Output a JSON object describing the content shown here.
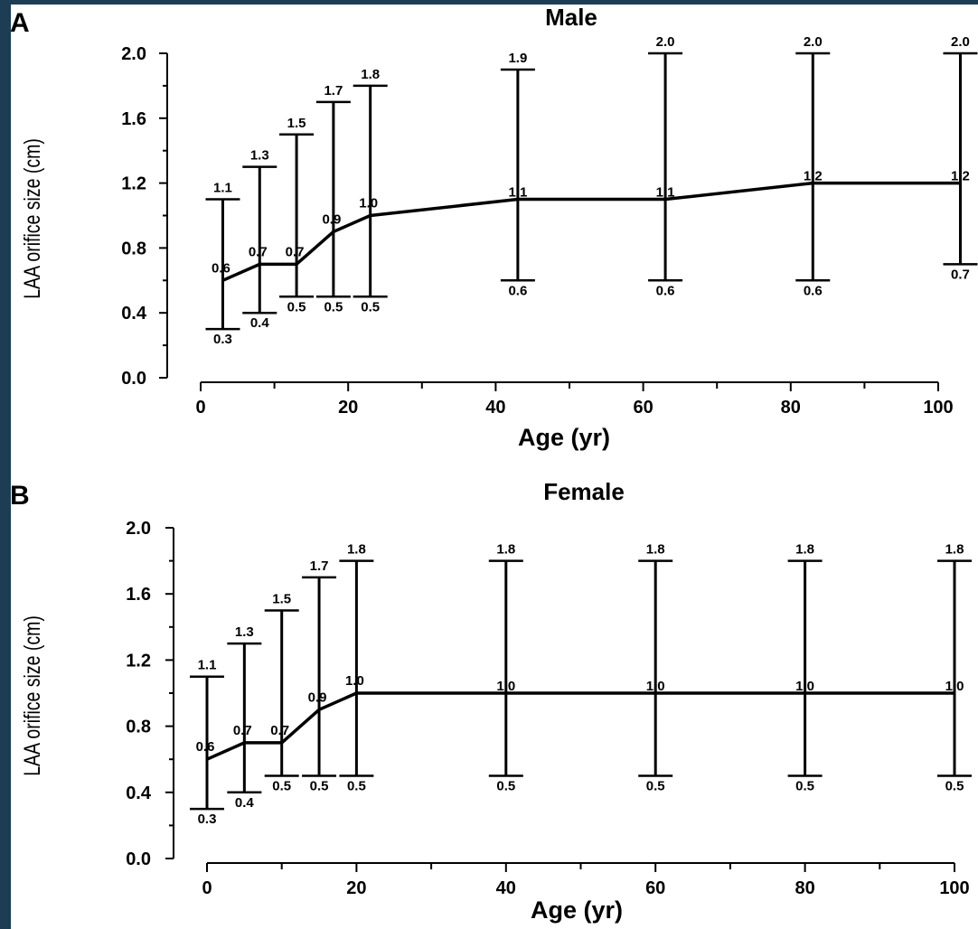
{
  "chart_data": [
    {
      "type": "line",
      "panel_letter": "A",
      "title": "Male",
      "xlabel": "Age (yr)",
      "ylabel": "LAA orifice size (cm)",
      "xlim": [
        0,
        100
      ],
      "ylim": [
        0.0,
        2.0
      ],
      "x_ticks": [
        "0",
        "20",
        "40",
        "60",
        "80",
        "100"
      ],
      "y_ticks": [
        "0.0",
        "0.4",
        "0.8",
        "1.2",
        "1.6",
        "2.0"
      ],
      "grid": false,
      "x": [
        3,
        8,
        13,
        18,
        23,
        43,
        63,
        83,
        103
      ],
      "series": [
        {
          "values": [
            0.6,
            0.7,
            0.7,
            0.9,
            1.0,
            1.1,
            1.1,
            1.2,
            1.2
          ],
          "lower": [
            0.3,
            0.4,
            0.5,
            0.5,
            0.5,
            0.6,
            0.6,
            0.6,
            0.7
          ],
          "upper": [
            1.1,
            1.3,
            1.5,
            1.7,
            1.8,
            1.9,
            2.0,
            2.0,
            2.0
          ],
          "labels": [
            "0.6",
            "0.7",
            "0.7",
            "0.9",
            "1.0",
            "1.1",
            "1.1",
            "1.2",
            "1.2"
          ],
          "lower_labels": [
            "0.3",
            "0.4",
            "0.5",
            "0.5",
            "0.5",
            "0.6",
            "0.6",
            "0.6",
            "0.7"
          ],
          "upper_labels": [
            "1.1",
            "1.3",
            "1.5",
            "1.7",
            "1.8",
            "1.9",
            "2.0",
            "2.0",
            "2.0"
          ]
        }
      ]
    },
    {
      "type": "line",
      "panel_letter": "B",
      "title": "Female",
      "xlabel": "Age (yr)",
      "ylabel": "LAA orifice size (cm)",
      "xlim": [
        0,
        100
      ],
      "ylim": [
        0.0,
        2.0
      ],
      "x_ticks": [
        "0",
        "20",
        "40",
        "60",
        "80",
        "100"
      ],
      "y_ticks": [
        "0.0",
        "0.4",
        "0.8",
        "1.2",
        "1.6",
        "2.0"
      ],
      "grid": false,
      "x": [
        0,
        5,
        10,
        15,
        20,
        40,
        60,
        80,
        100
      ],
      "series": [
        {
          "values": [
            0.6,
            0.7,
            0.7,
            0.9,
            1.0,
            1.0,
            1.0,
            1.0,
            1.0
          ],
          "lower": [
            0.3,
            0.4,
            0.5,
            0.5,
            0.5,
            0.5,
            0.5,
            0.5,
            0.5
          ],
          "upper": [
            1.1,
            1.3,
            1.5,
            1.7,
            1.8,
            1.8,
            1.8,
            1.8,
            1.8
          ],
          "labels": [
            "0.6",
            "0.7",
            "0.7",
            "0.9",
            "1.0",
            "1.0",
            "1.0",
            "1.0",
            "1.0"
          ],
          "lower_labels": [
            "0.3",
            "0.4",
            "0.5",
            "0.5",
            "0.5",
            "0.5",
            "0.5",
            "0.5",
            "0.5"
          ],
          "upper_labels": [
            "1.1",
            "1.3",
            "1.5",
            "1.7",
            "1.8",
            "1.8",
            "1.8",
            "1.8",
            "1.8"
          ]
        }
      ]
    }
  ]
}
